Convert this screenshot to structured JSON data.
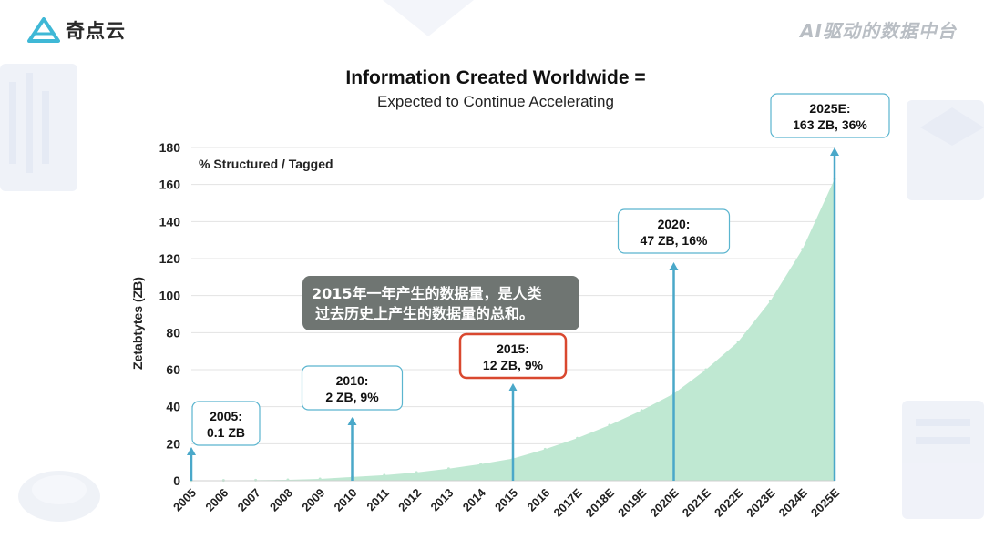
{
  "header": {
    "logo_text": "奇点云",
    "brand_tagline": "AI驱动的数据中台"
  },
  "colors": {
    "area_fill": "#bfe8d2",
    "arrow": "#4aa8c9",
    "callout_border": "#5bb5cf",
    "highlight_border": "#d9482f",
    "overlay_bg": "#6f7572"
  },
  "overlay": {
    "line1": "2015年一年产生的数据量，是人类",
    "line2": "过去历史上产生的数据量的总和。"
  },
  "chart_data": {
    "type": "area",
    "title": "Information Created Worldwide =",
    "subtitle": "Expected to Continue Accelerating",
    "ylabel": "Zetabtytes (ZB)",
    "annotation_label": "% Structured / Tagged",
    "ylim": [
      0,
      180
    ],
    "yticks": [
      0,
      20,
      40,
      60,
      80,
      100,
      120,
      140,
      160,
      180
    ],
    "grid": true,
    "categories": [
      "2005",
      "2006",
      "2007",
      "2008",
      "2009",
      "2010",
      "2011",
      "2012",
      "2013",
      "2014",
      "2015",
      "2016",
      "2017E",
      "2018E",
      "2019E",
      "2020E",
      "2021E",
      "2022E",
      "2023E",
      "2024E",
      "2025E"
    ],
    "values": [
      0.1,
      0.2,
      0.3,
      0.5,
      1,
      2,
      3,
      4.5,
      6.5,
      9,
      12,
      17,
      23,
      30,
      38,
      47,
      60,
      75,
      97,
      125,
      163
    ],
    "callouts": [
      {
        "category": "2005",
        "line1": "2005:",
        "line2": "0.1 ZB",
        "highlight": false
      },
      {
        "category": "2010",
        "line1": "2010:",
        "line2": "2 ZB, 9%",
        "highlight": false
      },
      {
        "category": "2015",
        "line1": "2015:",
        "line2": "12 ZB, 9%",
        "highlight": true
      },
      {
        "category": "2020E",
        "line1": "2020:",
        "line2": "47 ZB, 16%",
        "highlight": false
      },
      {
        "category": "2025E",
        "line1": "2025E:",
        "line2": "163 ZB, 36%",
        "highlight": false
      }
    ]
  }
}
